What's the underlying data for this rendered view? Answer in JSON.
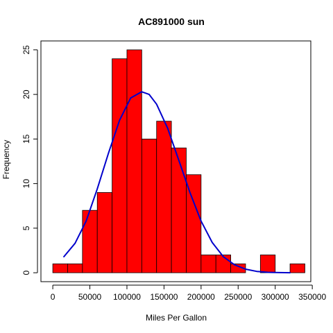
{
  "chart_data": {
    "type": "histogram",
    "title": "AC891000 sun",
    "xlabel": "Miles Per Gallon",
    "ylabel": "Frequency",
    "bin_width": 20000,
    "bins": [
      {
        "start": 0,
        "end": 20000,
        "count": 1
      },
      {
        "start": 20000,
        "end": 40000,
        "count": 1
      },
      {
        "start": 40000,
        "end": 60000,
        "count": 7
      },
      {
        "start": 60000,
        "end": 80000,
        "count": 9
      },
      {
        "start": 80000,
        "end": 100000,
        "count": 24
      },
      {
        "start": 100000,
        "end": 120000,
        "count": 25
      },
      {
        "start": 120000,
        "end": 140000,
        "count": 15
      },
      {
        "start": 140000,
        "end": 160000,
        "count": 17
      },
      {
        "start": 160000,
        "end": 180000,
        "count": 14
      },
      {
        "start": 180000,
        "end": 200000,
        "count": 11
      },
      {
        "start": 200000,
        "end": 220000,
        "count": 2
      },
      {
        "start": 220000,
        "end": 240000,
        "count": 2
      },
      {
        "start": 240000,
        "end": 260000,
        "count": 1
      },
      {
        "start": 260000,
        "end": 280000,
        "count": 0
      },
      {
        "start": 280000,
        "end": 300000,
        "count": 2
      },
      {
        "start": 300000,
        "end": 320000,
        "count": 0
      },
      {
        "start": 320000,
        "end": 340000,
        "count": 1
      }
    ],
    "density_curve": {
      "color": "#0000cc",
      "x": [
        15000,
        30000,
        45000,
        60000,
        75000,
        90000,
        105000,
        120000,
        130000,
        140000,
        155000,
        170000,
        185000,
        200000,
        215000,
        230000,
        245000,
        260000,
        275000,
        290000,
        305000,
        320000
      ],
      "y": [
        1.8,
        3.3,
        5.8,
        9.4,
        13.4,
        17.1,
        19.6,
        20.3,
        20.0,
        18.9,
        16.2,
        12.6,
        9.0,
        5.8,
        3.4,
        1.8,
        0.9,
        0.4,
        0.15,
        0.05,
        0.02,
        0.0
      ]
    },
    "x_ticks": [
      {
        "value": 0,
        "label": "0"
      },
      {
        "value": 50000,
        "label": "50000"
      },
      {
        "value": 100000,
        "label": "100000"
      },
      {
        "value": 150000,
        "label": "150000"
      },
      {
        "value": 200000,
        "label": "200000"
      },
      {
        "value": 250000,
        "label": "250000"
      },
      {
        "value": 300000,
        "label": "300000"
      },
      {
        "value": 350000,
        "label": "350000"
      }
    ],
    "y_ticks": [
      {
        "value": 0,
        "label": "0"
      },
      {
        "value": 5,
        "label": "5"
      },
      {
        "value": 10,
        "label": "10"
      },
      {
        "value": 15,
        "label": "15"
      },
      {
        "value": 20,
        "label": "20"
      },
      {
        "value": 25,
        "label": "25"
      }
    ],
    "xlim": [
      -16000,
      348000
    ],
    "ylim": [
      -1.0,
      26.0
    ],
    "bar_color": "#ff0000",
    "bar_border": "#000000",
    "grid": false
  }
}
